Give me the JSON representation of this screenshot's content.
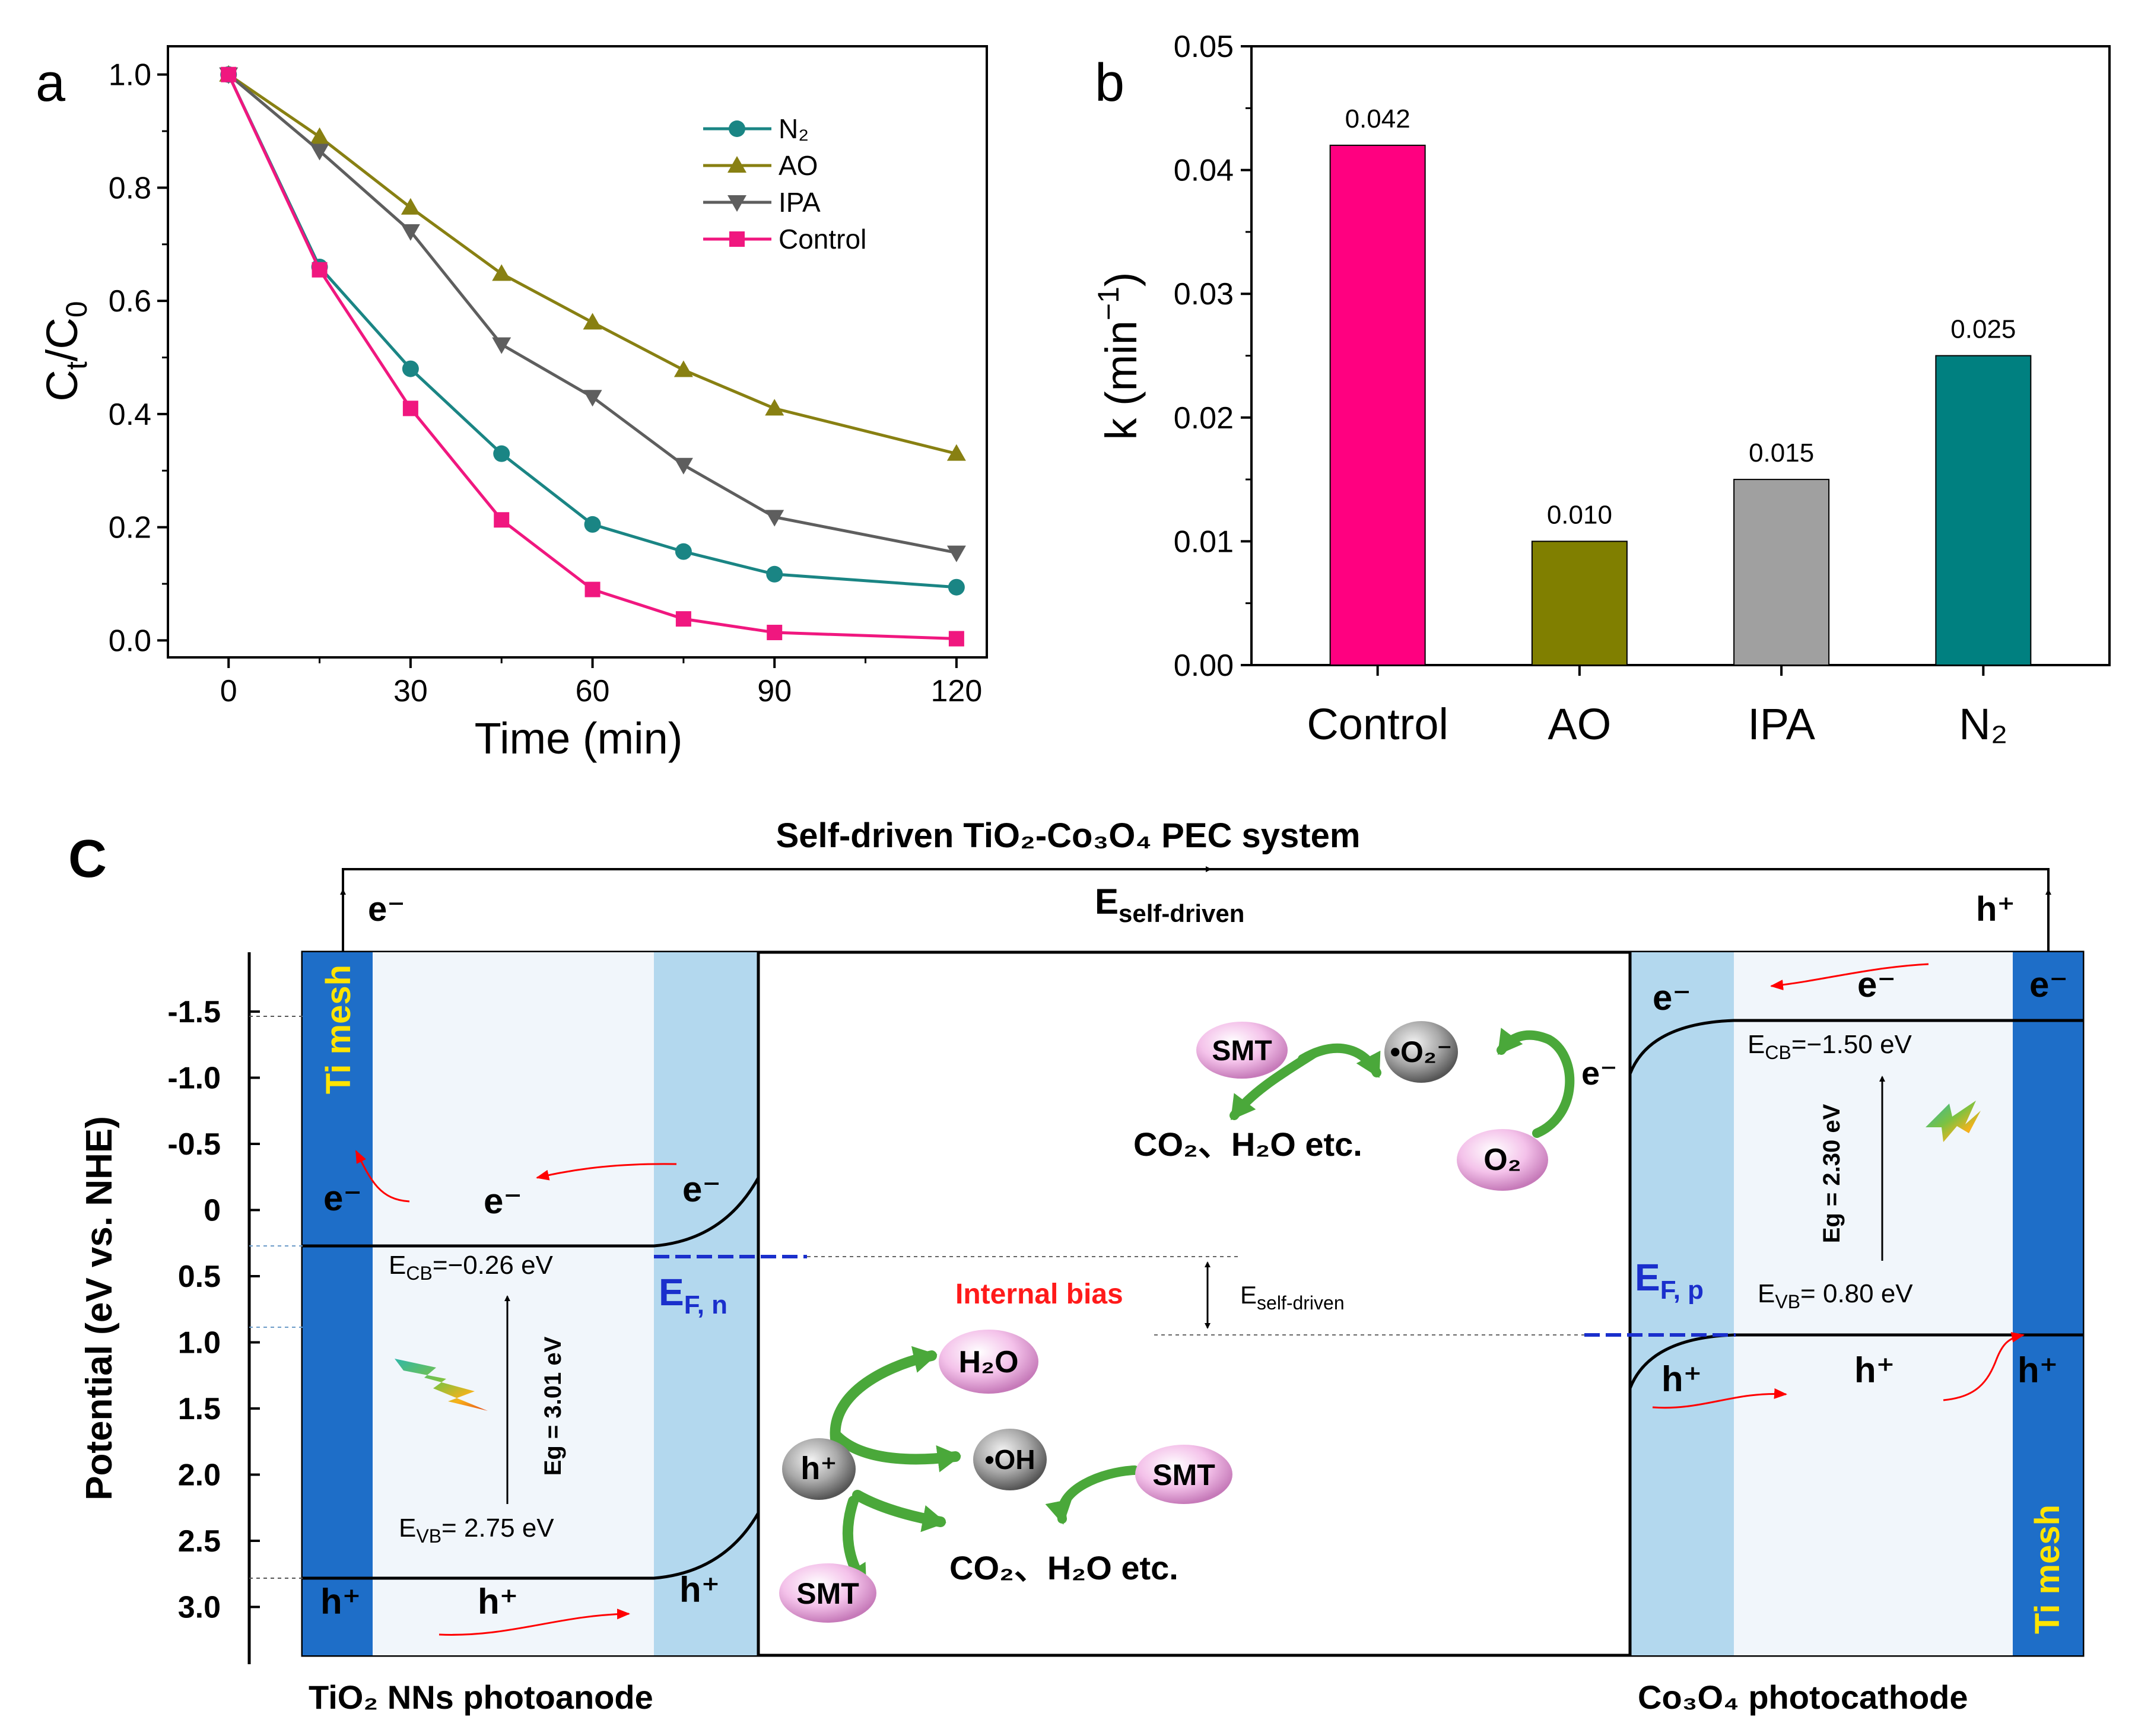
{
  "chart_data": [
    {
      "type": "line",
      "panel_label": "a",
      "xlabel": "Time (min)",
      "ylabel_main": "C",
      "ylabel_sub1": "t",
      "ylabel_mid": "/C",
      "ylabel_sub2": "0",
      "xlim": [
        -10,
        125
      ],
      "ylim": [
        -0.03,
        1.05
      ],
      "xticks": [
        0,
        30,
        60,
        90,
        120
      ],
      "yticks": [
        "0.0",
        "0.2",
        "0.4",
        "0.6",
        "0.8",
        "1.0"
      ],
      "x": [
        0,
        15,
        30,
        45,
        60,
        75,
        90,
        120
      ],
      "series": [
        {
          "name": "N₂",
          "marker": "circle",
          "color": "#1a8584",
          "values": [
            1.0,
            0.66,
            0.48,
            0.33,
            0.205,
            0.157,
            0.117,
            0.094
          ]
        },
        {
          "name": "AO",
          "marker": "triangle-up",
          "color": "#888012",
          "values": [
            1.0,
            0.89,
            0.765,
            0.648,
            0.562,
            0.478,
            0.41,
            0.33
          ]
        },
        {
          "name": "IPA",
          "marker": "triangle-down",
          "color": "#5e5e5e",
          "values": [
            1.0,
            0.865,
            0.723,
            0.523,
            0.43,
            0.31,
            0.218,
            0.155
          ]
        },
        {
          "name": "Control",
          "marker": "square",
          "color": "#f0177f",
          "values": [
            1.0,
            0.655,
            0.41,
            0.213,
            0.09,
            0.038,
            0.014,
            0.003
          ]
        }
      ]
    },
    {
      "type": "bar",
      "panel_label": "b",
      "ylabel": "k (min",
      "ylabel_sup": "−1",
      "ylabel_end": ")",
      "categories": [
        "Control",
        "AO",
        "IPA",
        "N₂"
      ],
      "values": [
        0.042,
        0.01,
        0.015,
        0.025
      ],
      "value_labels": [
        "0.042",
        "0.010",
        "0.015",
        "0.025"
      ],
      "colors": [
        "#ff0080",
        "#807f00",
        "#a0a0a0",
        "#008080"
      ],
      "ylim": [
        0,
        0.05
      ],
      "yticks": [
        "0.00",
        "0.01",
        "0.02",
        "0.03",
        "0.04",
        "0.05"
      ]
    }
  ],
  "diagram": {
    "panel_label": "C",
    "title": "Self-driven TiO₂-Co₃O₄ PEC system",
    "e_self_main": "E",
    "e_self_sub": "self-driven",
    "ylabel": "Potential (eV vs. NHE)",
    "ticks": [
      "-1.5",
      "-1.0",
      "-0.5",
      "0",
      "0.5",
      "1.0",
      "1.5",
      "2.0",
      "2.5",
      "3.0"
    ],
    "ti_mesh": "Ti mesh",
    "e_minus": "e⁻",
    "h_plus": "h⁺",
    "left": {
      "label": "TiO₂ NNs photoanode",
      "ecb_main": "E",
      "ecb_sub": "CB",
      "ecb_val": "=−0.26 eV",
      "evb_main": "E",
      "evb_sub": "VB",
      "evb_val": "= 2.75 eV",
      "eg": "Eg = 3.01 eV",
      "ef_main": "E",
      "ef_sub": "F, n"
    },
    "right": {
      "label": "Co₃O₄ photocathode",
      "ecb_main": "E",
      "ecb_sub": "CB",
      "ecb_val": "=−1.50 eV",
      "evb_main": "E",
      "evb_sub": "VB",
      "evb_val": "= 0.80 eV",
      "eg": "Eg = 2.30 eV",
      "ef_main": "E",
      "ef_sub": "F, p"
    },
    "internal_bias": "Internal bias",
    "species": {
      "smt": "SMT",
      "o2_radical": "•O₂⁻",
      "o2": "O₂",
      "h2o": "H₂O",
      "oh": "•OH",
      "h": "h⁺",
      "e": "e⁻",
      "products": "CO₂、H₂O etc."
    }
  }
}
